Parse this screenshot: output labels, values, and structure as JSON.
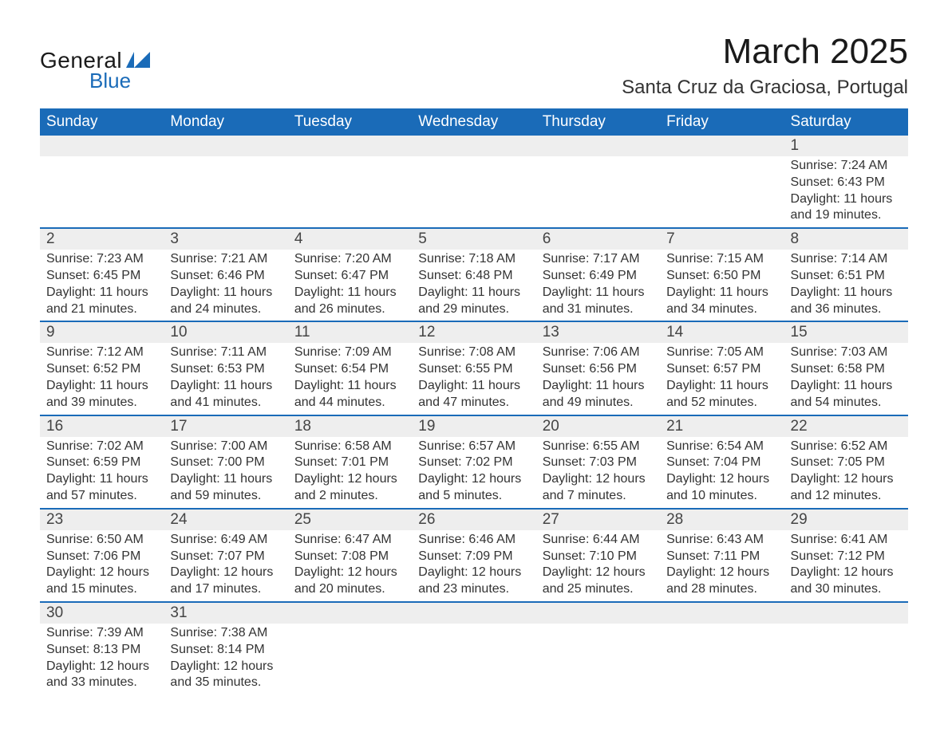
{
  "logo": {
    "text_general": "General",
    "text_blue": "Blue",
    "shape_color": "#1a6bb8"
  },
  "title": "March 2025",
  "location": "Santa Cruz da Graciosa, Portugal",
  "colors": {
    "header_bg": "#1a6bb8",
    "header_text": "#ffffff",
    "daynum_bg": "#eeeeee",
    "row_divider": "#1a6bb8",
    "text": "#333333",
    "page_bg": "#ffffff"
  },
  "typography": {
    "title_fontsize": 44,
    "location_fontsize": 24,
    "header_fontsize": 19,
    "daynum_fontsize": 19,
    "detail_fontsize": 16,
    "font_family": "Arial"
  },
  "days_of_week": [
    "Sunday",
    "Monday",
    "Tuesday",
    "Wednesday",
    "Thursday",
    "Friday",
    "Saturday"
  ],
  "weeks": [
    [
      null,
      null,
      null,
      null,
      null,
      null,
      {
        "n": "1",
        "sunrise": "Sunrise: 7:24 AM",
        "sunset": "Sunset: 6:43 PM",
        "daylight1": "Daylight: 11 hours",
        "daylight2": "and 19 minutes."
      }
    ],
    [
      {
        "n": "2",
        "sunrise": "Sunrise: 7:23 AM",
        "sunset": "Sunset: 6:45 PM",
        "daylight1": "Daylight: 11 hours",
        "daylight2": "and 21 minutes."
      },
      {
        "n": "3",
        "sunrise": "Sunrise: 7:21 AM",
        "sunset": "Sunset: 6:46 PM",
        "daylight1": "Daylight: 11 hours",
        "daylight2": "and 24 minutes."
      },
      {
        "n": "4",
        "sunrise": "Sunrise: 7:20 AM",
        "sunset": "Sunset: 6:47 PM",
        "daylight1": "Daylight: 11 hours",
        "daylight2": "and 26 minutes."
      },
      {
        "n": "5",
        "sunrise": "Sunrise: 7:18 AM",
        "sunset": "Sunset: 6:48 PM",
        "daylight1": "Daylight: 11 hours",
        "daylight2": "and 29 minutes."
      },
      {
        "n": "6",
        "sunrise": "Sunrise: 7:17 AM",
        "sunset": "Sunset: 6:49 PM",
        "daylight1": "Daylight: 11 hours",
        "daylight2": "and 31 minutes."
      },
      {
        "n": "7",
        "sunrise": "Sunrise: 7:15 AM",
        "sunset": "Sunset: 6:50 PM",
        "daylight1": "Daylight: 11 hours",
        "daylight2": "and 34 minutes."
      },
      {
        "n": "8",
        "sunrise": "Sunrise: 7:14 AM",
        "sunset": "Sunset: 6:51 PM",
        "daylight1": "Daylight: 11 hours",
        "daylight2": "and 36 minutes."
      }
    ],
    [
      {
        "n": "9",
        "sunrise": "Sunrise: 7:12 AM",
        "sunset": "Sunset: 6:52 PM",
        "daylight1": "Daylight: 11 hours",
        "daylight2": "and 39 minutes."
      },
      {
        "n": "10",
        "sunrise": "Sunrise: 7:11 AM",
        "sunset": "Sunset: 6:53 PM",
        "daylight1": "Daylight: 11 hours",
        "daylight2": "and 41 minutes."
      },
      {
        "n": "11",
        "sunrise": "Sunrise: 7:09 AM",
        "sunset": "Sunset: 6:54 PM",
        "daylight1": "Daylight: 11 hours",
        "daylight2": "and 44 minutes."
      },
      {
        "n": "12",
        "sunrise": "Sunrise: 7:08 AM",
        "sunset": "Sunset: 6:55 PM",
        "daylight1": "Daylight: 11 hours",
        "daylight2": "and 47 minutes."
      },
      {
        "n": "13",
        "sunrise": "Sunrise: 7:06 AM",
        "sunset": "Sunset: 6:56 PM",
        "daylight1": "Daylight: 11 hours",
        "daylight2": "and 49 minutes."
      },
      {
        "n": "14",
        "sunrise": "Sunrise: 7:05 AM",
        "sunset": "Sunset: 6:57 PM",
        "daylight1": "Daylight: 11 hours",
        "daylight2": "and 52 minutes."
      },
      {
        "n": "15",
        "sunrise": "Sunrise: 7:03 AM",
        "sunset": "Sunset: 6:58 PM",
        "daylight1": "Daylight: 11 hours",
        "daylight2": "and 54 minutes."
      }
    ],
    [
      {
        "n": "16",
        "sunrise": "Sunrise: 7:02 AM",
        "sunset": "Sunset: 6:59 PM",
        "daylight1": "Daylight: 11 hours",
        "daylight2": "and 57 minutes."
      },
      {
        "n": "17",
        "sunrise": "Sunrise: 7:00 AM",
        "sunset": "Sunset: 7:00 PM",
        "daylight1": "Daylight: 11 hours",
        "daylight2": "and 59 minutes."
      },
      {
        "n": "18",
        "sunrise": "Sunrise: 6:58 AM",
        "sunset": "Sunset: 7:01 PM",
        "daylight1": "Daylight: 12 hours",
        "daylight2": "and 2 minutes."
      },
      {
        "n": "19",
        "sunrise": "Sunrise: 6:57 AM",
        "sunset": "Sunset: 7:02 PM",
        "daylight1": "Daylight: 12 hours",
        "daylight2": "and 5 minutes."
      },
      {
        "n": "20",
        "sunrise": "Sunrise: 6:55 AM",
        "sunset": "Sunset: 7:03 PM",
        "daylight1": "Daylight: 12 hours",
        "daylight2": "and 7 minutes."
      },
      {
        "n": "21",
        "sunrise": "Sunrise: 6:54 AM",
        "sunset": "Sunset: 7:04 PM",
        "daylight1": "Daylight: 12 hours",
        "daylight2": "and 10 minutes."
      },
      {
        "n": "22",
        "sunrise": "Sunrise: 6:52 AM",
        "sunset": "Sunset: 7:05 PM",
        "daylight1": "Daylight: 12 hours",
        "daylight2": "and 12 minutes."
      }
    ],
    [
      {
        "n": "23",
        "sunrise": "Sunrise: 6:50 AM",
        "sunset": "Sunset: 7:06 PM",
        "daylight1": "Daylight: 12 hours",
        "daylight2": "and 15 minutes."
      },
      {
        "n": "24",
        "sunrise": "Sunrise: 6:49 AM",
        "sunset": "Sunset: 7:07 PM",
        "daylight1": "Daylight: 12 hours",
        "daylight2": "and 17 minutes."
      },
      {
        "n": "25",
        "sunrise": "Sunrise: 6:47 AM",
        "sunset": "Sunset: 7:08 PM",
        "daylight1": "Daylight: 12 hours",
        "daylight2": "and 20 minutes."
      },
      {
        "n": "26",
        "sunrise": "Sunrise: 6:46 AM",
        "sunset": "Sunset: 7:09 PM",
        "daylight1": "Daylight: 12 hours",
        "daylight2": "and 23 minutes."
      },
      {
        "n": "27",
        "sunrise": "Sunrise: 6:44 AM",
        "sunset": "Sunset: 7:10 PM",
        "daylight1": "Daylight: 12 hours",
        "daylight2": "and 25 minutes."
      },
      {
        "n": "28",
        "sunrise": "Sunrise: 6:43 AM",
        "sunset": "Sunset: 7:11 PM",
        "daylight1": "Daylight: 12 hours",
        "daylight2": "and 28 minutes."
      },
      {
        "n": "29",
        "sunrise": "Sunrise: 6:41 AM",
        "sunset": "Sunset: 7:12 PM",
        "daylight1": "Daylight: 12 hours",
        "daylight2": "and 30 minutes."
      }
    ],
    [
      {
        "n": "30",
        "sunrise": "Sunrise: 7:39 AM",
        "sunset": "Sunset: 8:13 PM",
        "daylight1": "Daylight: 12 hours",
        "daylight2": "and 33 minutes."
      },
      {
        "n": "31",
        "sunrise": "Sunrise: 7:38 AM",
        "sunset": "Sunset: 8:14 PM",
        "daylight1": "Daylight: 12 hours",
        "daylight2": "and 35 minutes."
      },
      null,
      null,
      null,
      null,
      null
    ]
  ]
}
